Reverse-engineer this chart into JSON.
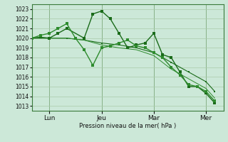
{
  "background_color": "#cce8d8",
  "grid_color": "#aacaaa",
  "line_color1": "#1a6b1a",
  "line_color2": "#2d8b2d",
  "ylabel": "Pression niveau de la mer( hPa )",
  "ylim": [
    1012.5,
    1023.5
  ],
  "yticks": [
    1013,
    1014,
    1015,
    1016,
    1017,
    1018,
    1019,
    1020,
    1021,
    1022,
    1023
  ],
  "day_labels": [
    "Lun",
    "Jeu",
    "Mar",
    "Mer"
  ],
  "day_positions": [
    1,
    4,
    7,
    10
  ],
  "xlim": [
    0,
    11
  ],
  "series1_x": [
    0,
    0.5,
    1,
    1.5,
    2,
    3,
    3.5,
    4,
    4.5,
    5,
    5.5,
    6,
    6.5,
    7,
    7.5,
    8,
    8.5,
    9,
    9.5,
    10,
    10.5
  ],
  "series1_y": [
    1020.0,
    1020.1,
    1020.0,
    1020.5,
    1021.0,
    1020.0,
    1022.5,
    1022.8,
    1022.0,
    1020.5,
    1019.0,
    1019.3,
    1019.5,
    1020.5,
    1018.3,
    1018.0,
    1016.5,
    1015.0,
    1015.0,
    1014.3,
    1013.3
  ],
  "series2_x": [
    0,
    0.5,
    1,
    1.5,
    2,
    2.5,
    3,
    3.5,
    4,
    4.5,
    5,
    5.5,
    6,
    6.5,
    7,
    7.5,
    8,
    8.5,
    9,
    9.5,
    10,
    10.5
  ],
  "series2_y": [
    1020.0,
    1020.3,
    1020.5,
    1021.0,
    1021.5,
    1020.0,
    1018.8,
    1017.2,
    1019.0,
    1019.2,
    1019.5,
    1019.8,
    1019.2,
    1019.0,
    1018.5,
    1018.0,
    1017.0,
    1016.2,
    1015.2,
    1015.0,
    1014.5,
    1013.5
  ],
  "series3_x": [
    0,
    1,
    2,
    3,
    4,
    5,
    6,
    7,
    8,
    9,
    10,
    10.5
  ],
  "series3_y": [
    1020.0,
    1020.0,
    1020.0,
    1019.8,
    1019.5,
    1019.3,
    1019.0,
    1018.5,
    1017.5,
    1016.5,
    1015.5,
    1014.5
  ],
  "series4_x": [
    0,
    1,
    2,
    3,
    4,
    5,
    6,
    7,
    8,
    9,
    10,
    10.5
  ],
  "series4_y": [
    1020.0,
    1020.0,
    1020.0,
    1019.8,
    1019.3,
    1019.0,
    1018.8,
    1018.2,
    1016.8,
    1015.8,
    1014.8,
    1013.8
  ]
}
